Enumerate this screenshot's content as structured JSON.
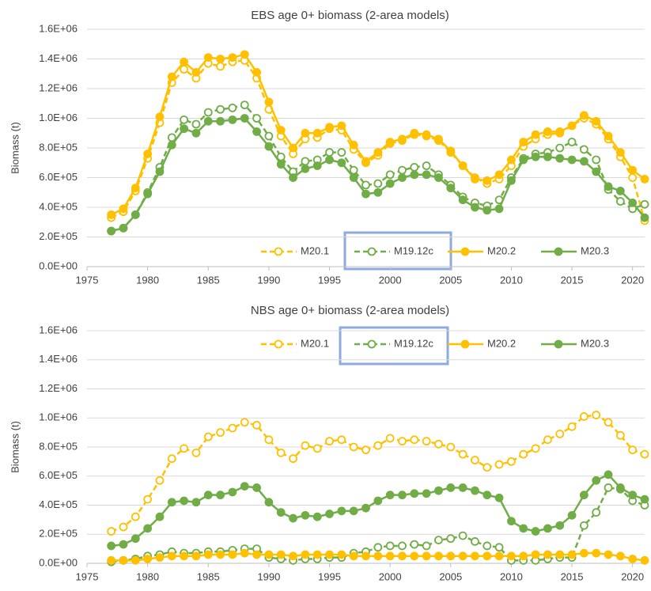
{
  "chart_data": [
    {
      "type": "line",
      "title": "EBS age 0+ biomass (2-area models)",
      "y_label": "Biomass (t)",
      "legend": "lower right",
      "grid": true,
      "x": [
        1977,
        1978,
        1979,
        1980,
        1981,
        1982,
        1983,
        1984,
        1985,
        1986,
        1987,
        1988,
        1989,
        1990,
        1991,
        1992,
        1993,
        1994,
        1995,
        1996,
        1997,
        1998,
        1999,
        2000,
        2001,
        2002,
        2003,
        2004,
        2005,
        2006,
        2007,
        2008,
        2009,
        2010,
        2011,
        2012,
        2013,
        2014,
        2015,
        2016,
        2017,
        2018,
        2019,
        2020,
        2021
      ],
      "xlim": [
        1975,
        2021
      ],
      "xticks": [
        1975,
        1980,
        1985,
        1990,
        1995,
        2000,
        2005,
        2010,
        2015,
        2020
      ],
      "ylim": [
        0,
        1600000
      ],
      "yticks": [
        {
          "value": 0,
          "label": "0.0E+00"
        },
        {
          "value": 200000,
          "label": "2.0E+05"
        },
        {
          "value": 400000,
          "label": "4.0E+05"
        },
        {
          "value": 600000,
          "label": "6.0E+05"
        },
        {
          "value": 800000,
          "label": "8.0E+05"
        },
        {
          "value": 1000000,
          "label": "1.0E+06"
        },
        {
          "value": 1200000,
          "label": "1.2E+06"
        },
        {
          "value": 1400000,
          "label": "1.4E+06"
        },
        {
          "value": 1600000,
          "label": "1.6E+06"
        }
      ],
      "series": [
        {
          "name": "M20.1",
          "color": "#FFC000",
          "dashed": true,
          "open_markers": true,
          "values": [
            330000.0,
            370000.0,
            510000.0,
            730000.0,
            970000.0,
            1240000.0,
            1330000.0,
            1270000.0,
            1370000.0,
            1350000.0,
            1380000.0,
            1390000.0,
            1270000.0,
            1060000.0,
            880000.0,
            760000.0,
            860000.0,
            870000.0,
            930000.0,
            920000.0,
            790000.0,
            700000.0,
            750000.0,
            830000.0,
            850000.0,
            890000.0,
            880000.0,
            850000.0,
            770000.0,
            680000.0,
            600000.0,
            560000.0,
            590000.0,
            680000.0,
            810000.0,
            860000.0,
            890000.0,
            900000.0,
            950000.0,
            1000000.0,
            960000.0,
            860000.0,
            740000.0,
            600000.0,
            310000.0
          ]
        },
        {
          "name": "M19.12c",
          "color": "#70AD47",
          "dashed": true,
          "open_markers": true,
          "values": [
            240000.0,
            260000.0,
            350000.0,
            500000.0,
            670000.0,
            870000.0,
            990000.0,
            960000.0,
            1040000.0,
            1060000.0,
            1070000.0,
            1090000.0,
            1000000.0,
            880000.0,
            740000.0,
            640000.0,
            710000.0,
            720000.0,
            770000.0,
            770000.0,
            650000.0,
            550000.0,
            560000.0,
            620000.0,
            650000.0,
            670000.0,
            680000.0,
            620000.0,
            550000.0,
            470000.0,
            430000.0,
            410000.0,
            450000.0,
            600000.0,
            730000.0,
            760000.0,
            770000.0,
            800000.0,
            840000.0,
            790000.0,
            720000.0,
            520000.0,
            440000.0,
            390000.0,
            420000.0
          ]
        },
        {
          "name": "M20.2",
          "color": "#FFC000",
          "dashed": false,
          "open_markers": false,
          "values": [
            350000.0,
            390000.0,
            530000.0,
            760000.0,
            1010000.0,
            1280000.0,
            1380000.0,
            1310000.0,
            1410000.0,
            1400000.0,
            1410000.0,
            1430000.0,
            1310000.0,
            1110000.0,
            920000.0,
            800000.0,
            900000.0,
            900000.0,
            940000.0,
            950000.0,
            820000.0,
            710000.0,
            770000.0,
            840000.0,
            860000.0,
            900000.0,
            890000.0,
            860000.0,
            780000.0,
            680000.0,
            590000.0,
            580000.0,
            620000.0,
            720000.0,
            840000.0,
            890000.0,
            910000.0,
            910000.0,
            950000.0,
            1020000.0,
            980000.0,
            880000.0,
            770000.0,
            650000.0,
            590000.0
          ]
        },
        {
          "name": "M20.3",
          "color": "#70AD47",
          "dashed": false,
          "open_markers": false,
          "values": [
            240000.0,
            260000.0,
            350000.0,
            490000.0,
            640000.0,
            820000.0,
            930000.0,
            900000.0,
            980000.0,
            980000.0,
            990000.0,
            1000000.0,
            910000.0,
            810000.0,
            690000.0,
            600000.0,
            660000.0,
            680000.0,
            720000.0,
            700000.0,
            600000.0,
            490000.0,
            500000.0,
            560000.0,
            600000.0,
            620000.0,
            620000.0,
            600000.0,
            530000.0,
            450000.0,
            400000.0,
            380000.0,
            390000.0,
            580000.0,
            720000.0,
            740000.0,
            740000.0,
            730000.0,
            720000.0,
            710000.0,
            640000.0,
            540000.0,
            510000.0,
            430000.0,
            330000.0
          ]
        }
      ]
    },
    {
      "type": "line",
      "title": "NBS age 0+ biomass (2-area models)",
      "y_label": "Biomass (t)",
      "legend": "upper right",
      "grid": true,
      "x": [
        1977,
        1978,
        1979,
        1980,
        1981,
        1982,
        1983,
        1984,
        1985,
        1986,
        1987,
        1988,
        1989,
        1990,
        1991,
        1992,
        1993,
        1994,
        1995,
        1996,
        1997,
        1998,
        1999,
        2000,
        2001,
        2002,
        2003,
        2004,
        2005,
        2006,
        2007,
        2008,
        2009,
        2010,
        2011,
        2012,
        2013,
        2014,
        2015,
        2016,
        2017,
        2018,
        2019,
        2020,
        2021
      ],
      "xlim": [
        1975,
        2021
      ],
      "xticks": [
        1975,
        1980,
        1985,
        1990,
        1995,
        2000,
        2005,
        2010,
        2015,
        2020
      ],
      "ylim": [
        0,
        1600000
      ],
      "yticks": [
        {
          "value": 0,
          "label": "0.0E+00"
        },
        {
          "value": 200000,
          "label": "2.0E+05"
        },
        {
          "value": 400000,
          "label": "4.0E+05"
        },
        {
          "value": 600000,
          "label": "6.0E+05"
        },
        {
          "value": 800000,
          "label": "8.0E+05"
        },
        {
          "value": 1000000,
          "label": "1.0E+06"
        },
        {
          "value": 1200000,
          "label": "1.2E+06"
        },
        {
          "value": 1400000,
          "label": "1.4E+06"
        },
        {
          "value": 1600000,
          "label": "1.6E+06"
        }
      ],
      "series": [
        {
          "name": "M20.1",
          "color": "#FFC000",
          "dashed": true,
          "open_markers": true,
          "values": [
            220000.0,
            250000.0,
            320000.0,
            440000.0,
            570000.0,
            720000.0,
            790000.0,
            760000.0,
            870000.0,
            900000.0,
            930000.0,
            970000.0,
            950000.0,
            850000.0,
            760000.0,
            720000.0,
            810000.0,
            790000.0,
            840000.0,
            850000.0,
            800000.0,
            780000.0,
            810000.0,
            860000.0,
            840000.0,
            850000.0,
            840000.0,
            820000.0,
            800000.0,
            750000.0,
            710000.0,
            660000.0,
            680000.0,
            700000.0,
            750000.0,
            790000.0,
            850000.0,
            890000.0,
            940000.0,
            1010000.0,
            1020000.0,
            970000.0,
            880000.0,
            780000.0,
            750000.0
          ]
        },
        {
          "name": "M19.12c",
          "color": "#70AD47",
          "dashed": true,
          "open_markers": true,
          "values": [
            10000.0,
            20000.0,
            30000.0,
            50000.0,
            60000.0,
            80000.0,
            70000.0,
            70000.0,
            80000.0,
            80000.0,
            90000.0,
            100000.0,
            100000.0,
            40000.0,
            30000.0,
            20000.0,
            30000.0,
            30000.0,
            40000.0,
            40000.0,
            70000.0,
            80000.0,
            110000.0,
            120000.0,
            120000.0,
            130000.0,
            120000.0,
            160000.0,
            170000.0,
            190000.0,
            150000.0,
            120000.0,
            110000.0,
            20000.0,
            20000.0,
            20000.0,
            30000.0,
            40000.0,
            40000.0,
            260000.0,
            350000.0,
            520000.0,
            510000.0,
            430000.0,
            400000.0
          ]
        },
        {
          "name": "M20.2",
          "color": "#FFC000",
          "dashed": false,
          "open_markers": false,
          "values": [
            20000.0,
            20000.0,
            20000.0,
            30000.0,
            40000.0,
            50000.0,
            50000.0,
            50000.0,
            60000.0,
            60000.0,
            60000.0,
            70000.0,
            60000.0,
            60000.0,
            60000.0,
            50000.0,
            60000.0,
            60000.0,
            60000.0,
            60000.0,
            50000.0,
            50000.0,
            50000.0,
            50000.0,
            50000.0,
            50000.0,
            50000.0,
            50000.0,
            50000.0,
            50000.0,
            50000.0,
            50000.0,
            50000.0,
            50000.0,
            50000.0,
            60000.0,
            60000.0,
            60000.0,
            60000.0,
            70000.0,
            70000.0,
            60000.0,
            50000.0,
            30000.0,
            20000.0
          ]
        },
        {
          "name": "M20.3",
          "color": "#70AD47",
          "dashed": false,
          "open_markers": false,
          "values": [
            120000.0,
            130000.0,
            170000.0,
            240000.0,
            320000.0,
            420000.0,
            430000.0,
            420000.0,
            470000.0,
            470000.0,
            490000.0,
            530000.0,
            520000.0,
            420000.0,
            350000.0,
            310000.0,
            330000.0,
            320000.0,
            340000.0,
            360000.0,
            360000.0,
            380000.0,
            430000.0,
            470000.0,
            470000.0,
            480000.0,
            480000.0,
            500000.0,
            520000.0,
            520000.0,
            500000.0,
            470000.0,
            450000.0,
            290000.0,
            240000.0,
            220000.0,
            240000.0,
            260000.0,
            330000.0,
            470000.0,
            570000.0,
            610000.0,
            520000.0,
            470000.0,
            440000.0
          ]
        }
      ]
    }
  ]
}
